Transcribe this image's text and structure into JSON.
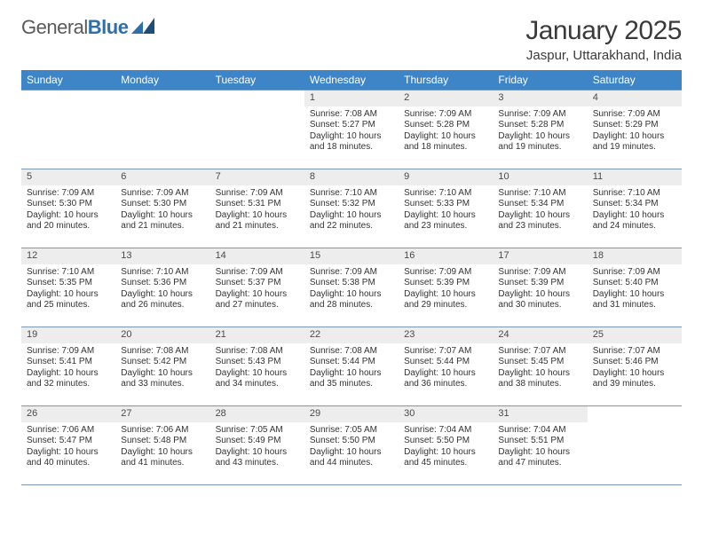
{
  "logo": {
    "text1": "General",
    "text2": "Blue"
  },
  "title": "January 2025",
  "location": "Jaspur, Uttarakhand, India",
  "colors": {
    "header_bg": "#3d85c6",
    "header_fg": "#ffffff",
    "daynum_bg": "#ededed",
    "divider": "#7a97b8"
  },
  "daysOfWeek": [
    "Sunday",
    "Monday",
    "Tuesday",
    "Wednesday",
    "Thursday",
    "Friday",
    "Saturday"
  ],
  "weeks": [
    [
      {
        "n": "",
        "sr": "",
        "ss": "",
        "dl": ""
      },
      {
        "n": "",
        "sr": "",
        "ss": "",
        "dl": ""
      },
      {
        "n": "",
        "sr": "",
        "ss": "",
        "dl": ""
      },
      {
        "n": "1",
        "sr": "Sunrise: 7:08 AM",
        "ss": "Sunset: 5:27 PM",
        "dl": "Daylight: 10 hours and 18 minutes."
      },
      {
        "n": "2",
        "sr": "Sunrise: 7:09 AM",
        "ss": "Sunset: 5:28 PM",
        "dl": "Daylight: 10 hours and 18 minutes."
      },
      {
        "n": "3",
        "sr": "Sunrise: 7:09 AM",
        "ss": "Sunset: 5:28 PM",
        "dl": "Daylight: 10 hours and 19 minutes."
      },
      {
        "n": "4",
        "sr": "Sunrise: 7:09 AM",
        "ss": "Sunset: 5:29 PM",
        "dl": "Daylight: 10 hours and 19 minutes."
      }
    ],
    [
      {
        "n": "5",
        "sr": "Sunrise: 7:09 AM",
        "ss": "Sunset: 5:30 PM",
        "dl": "Daylight: 10 hours and 20 minutes."
      },
      {
        "n": "6",
        "sr": "Sunrise: 7:09 AM",
        "ss": "Sunset: 5:30 PM",
        "dl": "Daylight: 10 hours and 21 minutes."
      },
      {
        "n": "7",
        "sr": "Sunrise: 7:09 AM",
        "ss": "Sunset: 5:31 PM",
        "dl": "Daylight: 10 hours and 21 minutes."
      },
      {
        "n": "8",
        "sr": "Sunrise: 7:10 AM",
        "ss": "Sunset: 5:32 PM",
        "dl": "Daylight: 10 hours and 22 minutes."
      },
      {
        "n": "9",
        "sr": "Sunrise: 7:10 AM",
        "ss": "Sunset: 5:33 PM",
        "dl": "Daylight: 10 hours and 23 minutes."
      },
      {
        "n": "10",
        "sr": "Sunrise: 7:10 AM",
        "ss": "Sunset: 5:34 PM",
        "dl": "Daylight: 10 hours and 23 minutes."
      },
      {
        "n": "11",
        "sr": "Sunrise: 7:10 AM",
        "ss": "Sunset: 5:34 PM",
        "dl": "Daylight: 10 hours and 24 minutes."
      }
    ],
    [
      {
        "n": "12",
        "sr": "Sunrise: 7:10 AM",
        "ss": "Sunset: 5:35 PM",
        "dl": "Daylight: 10 hours and 25 minutes."
      },
      {
        "n": "13",
        "sr": "Sunrise: 7:10 AM",
        "ss": "Sunset: 5:36 PM",
        "dl": "Daylight: 10 hours and 26 minutes."
      },
      {
        "n": "14",
        "sr": "Sunrise: 7:09 AM",
        "ss": "Sunset: 5:37 PM",
        "dl": "Daylight: 10 hours and 27 minutes."
      },
      {
        "n": "15",
        "sr": "Sunrise: 7:09 AM",
        "ss": "Sunset: 5:38 PM",
        "dl": "Daylight: 10 hours and 28 minutes."
      },
      {
        "n": "16",
        "sr": "Sunrise: 7:09 AM",
        "ss": "Sunset: 5:39 PM",
        "dl": "Daylight: 10 hours and 29 minutes."
      },
      {
        "n": "17",
        "sr": "Sunrise: 7:09 AM",
        "ss": "Sunset: 5:39 PM",
        "dl": "Daylight: 10 hours and 30 minutes."
      },
      {
        "n": "18",
        "sr": "Sunrise: 7:09 AM",
        "ss": "Sunset: 5:40 PM",
        "dl": "Daylight: 10 hours and 31 minutes."
      }
    ],
    [
      {
        "n": "19",
        "sr": "Sunrise: 7:09 AM",
        "ss": "Sunset: 5:41 PM",
        "dl": "Daylight: 10 hours and 32 minutes."
      },
      {
        "n": "20",
        "sr": "Sunrise: 7:08 AM",
        "ss": "Sunset: 5:42 PM",
        "dl": "Daylight: 10 hours and 33 minutes."
      },
      {
        "n": "21",
        "sr": "Sunrise: 7:08 AM",
        "ss": "Sunset: 5:43 PM",
        "dl": "Daylight: 10 hours and 34 minutes."
      },
      {
        "n": "22",
        "sr": "Sunrise: 7:08 AM",
        "ss": "Sunset: 5:44 PM",
        "dl": "Daylight: 10 hours and 35 minutes."
      },
      {
        "n": "23",
        "sr": "Sunrise: 7:07 AM",
        "ss": "Sunset: 5:44 PM",
        "dl": "Daylight: 10 hours and 36 minutes."
      },
      {
        "n": "24",
        "sr": "Sunrise: 7:07 AM",
        "ss": "Sunset: 5:45 PM",
        "dl": "Daylight: 10 hours and 38 minutes."
      },
      {
        "n": "25",
        "sr": "Sunrise: 7:07 AM",
        "ss": "Sunset: 5:46 PM",
        "dl": "Daylight: 10 hours and 39 minutes."
      }
    ],
    [
      {
        "n": "26",
        "sr": "Sunrise: 7:06 AM",
        "ss": "Sunset: 5:47 PM",
        "dl": "Daylight: 10 hours and 40 minutes."
      },
      {
        "n": "27",
        "sr": "Sunrise: 7:06 AM",
        "ss": "Sunset: 5:48 PM",
        "dl": "Daylight: 10 hours and 41 minutes."
      },
      {
        "n": "28",
        "sr": "Sunrise: 7:05 AM",
        "ss": "Sunset: 5:49 PM",
        "dl": "Daylight: 10 hours and 43 minutes."
      },
      {
        "n": "29",
        "sr": "Sunrise: 7:05 AM",
        "ss": "Sunset: 5:50 PM",
        "dl": "Daylight: 10 hours and 44 minutes."
      },
      {
        "n": "30",
        "sr": "Sunrise: 7:04 AM",
        "ss": "Sunset: 5:50 PM",
        "dl": "Daylight: 10 hours and 45 minutes."
      },
      {
        "n": "31",
        "sr": "Sunrise: 7:04 AM",
        "ss": "Sunset: 5:51 PM",
        "dl": "Daylight: 10 hours and 47 minutes."
      },
      {
        "n": "",
        "sr": "",
        "ss": "",
        "dl": ""
      }
    ]
  ]
}
